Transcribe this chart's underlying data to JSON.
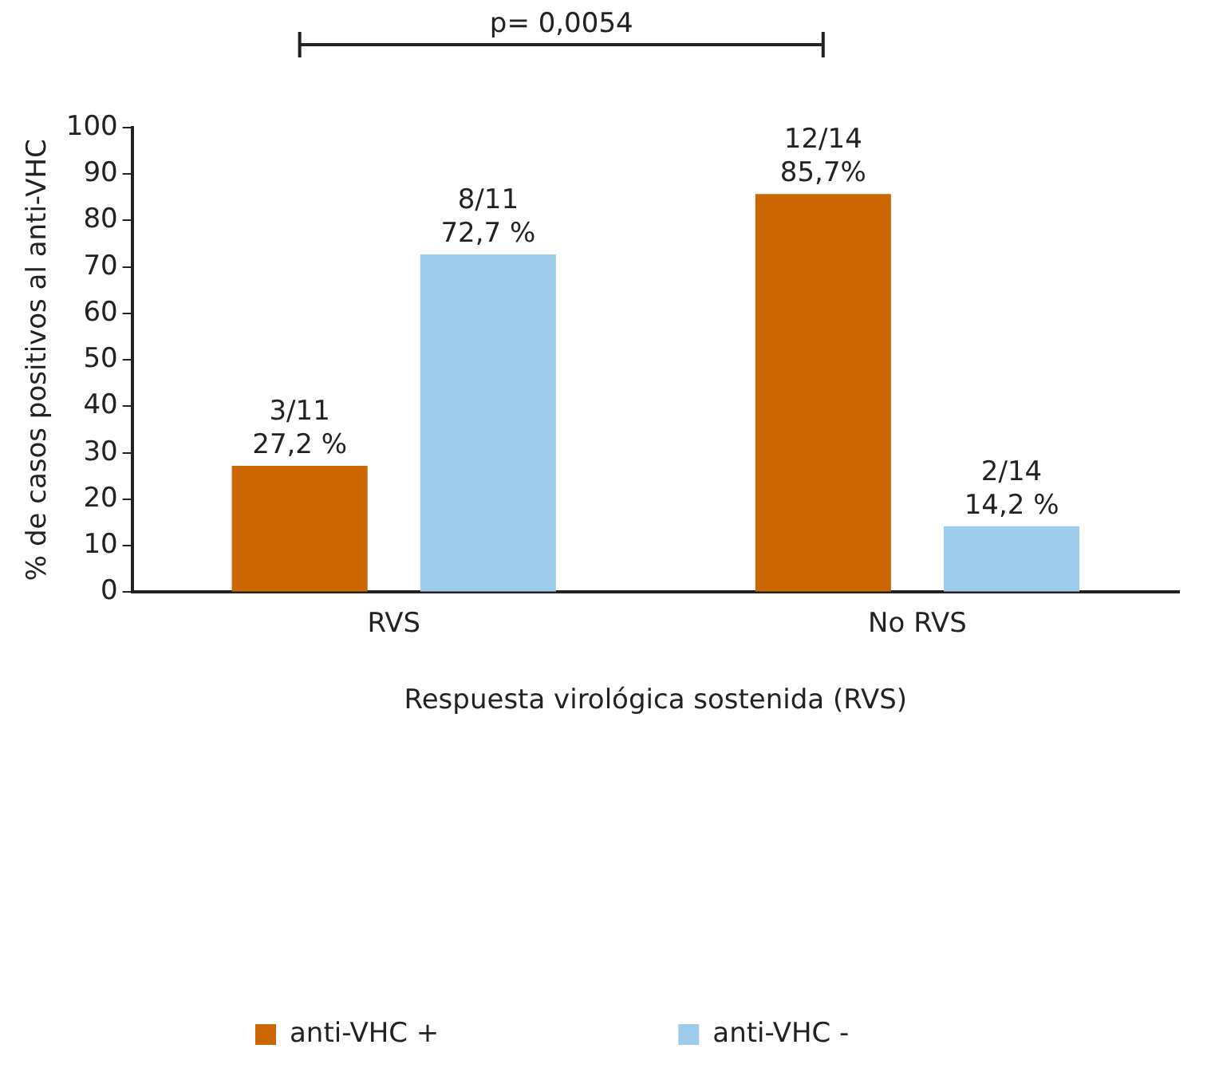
{
  "chart_data": {
    "type": "bar",
    "xlabel": "Respuesta virológica sostenida (RVS)",
    "ylabel": "% de casos positivos al anti-VHC",
    "categories": [
      "RVS",
      "No RVS"
    ],
    "series": [
      {
        "name": "anti-VHC +",
        "color": "#cc6600",
        "values": [
          27.2,
          85.7
        ],
        "value_labels": [
          "3/11\n27,2 %",
          "12/14\n85,7%"
        ]
      },
      {
        "name": "anti-VHC -",
        "color": "#9fcbeb",
        "values": [
          72.7,
          14.2
        ],
        "value_labels": [
          "8/11\n72,7 %",
          "2/14\n14,2 %"
        ]
      }
    ],
    "ylim": [
      0,
      100
    ],
    "yticks": [
      0,
      10,
      20,
      30,
      40,
      50,
      60,
      70,
      80,
      90,
      100
    ],
    "grid": false,
    "legend": "bottom",
    "annotations": [
      "p= 0,0054"
    ]
  }
}
